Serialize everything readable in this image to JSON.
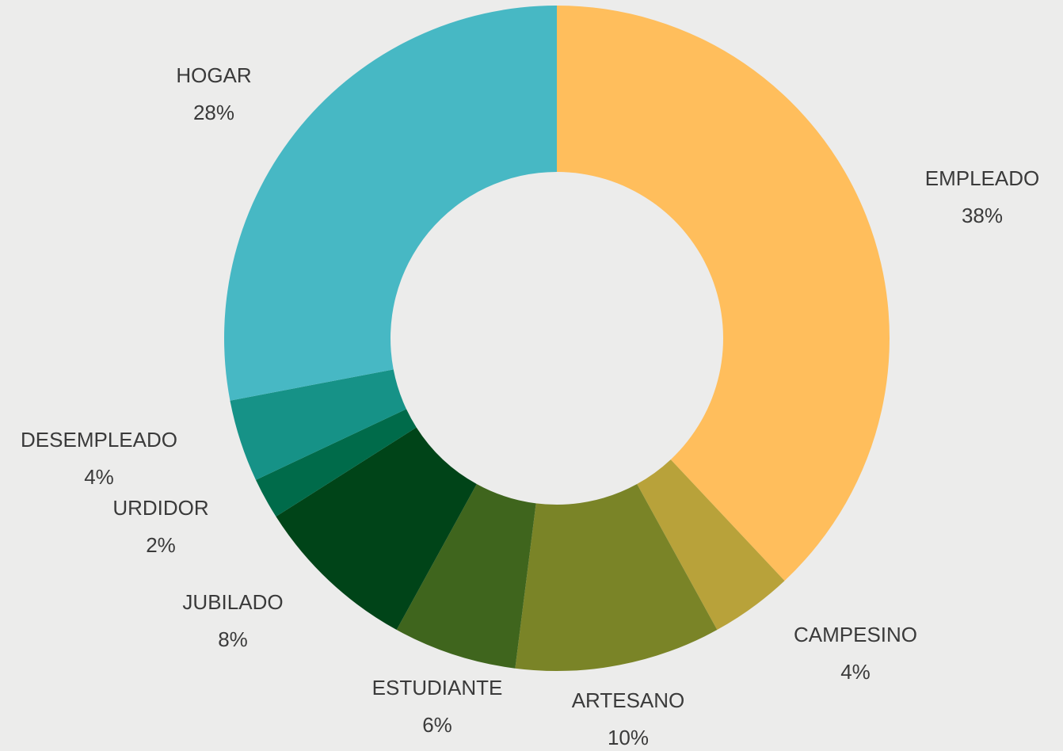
{
  "chart_data": {
    "type": "donut",
    "categories": [
      "EMPLEADO",
      "CAMPESINO",
      "ARTESANO",
      "ESTUDIANTE",
      "JUBILADO",
      "URDIDOR",
      "DESEMPLEADO",
      "HOGAR"
    ],
    "values": [
      38,
      4,
      10,
      6,
      8,
      2,
      4,
      28
    ],
    "value_labels": [
      "38%",
      "4%",
      "10%",
      "6%",
      "8%",
      "2%",
      "4%",
      "28%"
    ],
    "colors": [
      "#ffbe5c",
      "#b8a23a",
      "#7a8427",
      "#3f651d",
      "#004418",
      "#006b4a",
      "#169287",
      "#47b8c4"
    ]
  }
}
